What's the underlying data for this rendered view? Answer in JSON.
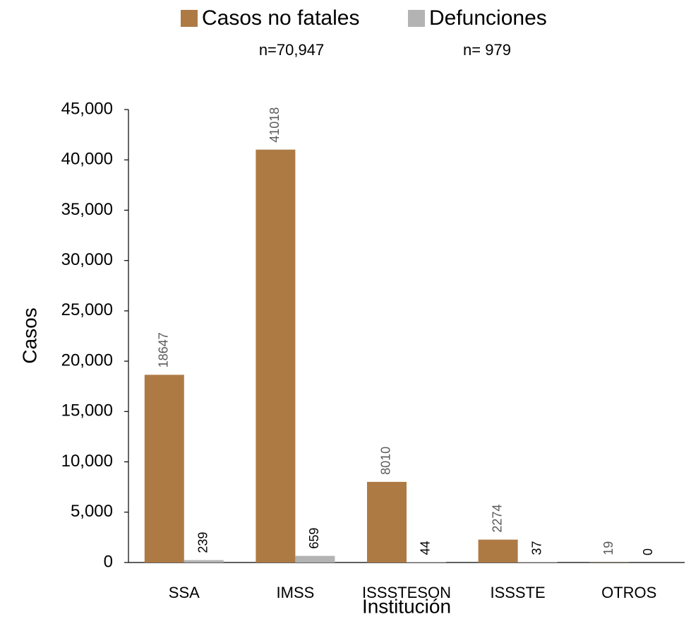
{
  "chart_data": {
    "type": "bar",
    "annotations": [
      "n=70,947",
      "n= 979"
    ],
    "y_label": "Casos",
    "x_label": "Institución",
    "categories": [
      "SSA",
      "IMSS",
      "ISSSTESON",
      "ISSSTE",
      "OTROS"
    ],
    "series": [
      {
        "name": "Casos no fatales",
        "color": "#ae7a44",
        "values": [
          18647,
          41018,
          8010,
          2274,
          19
        ]
      },
      {
        "name": "Defunciones",
        "color": "#b3b3b3",
        "values": [
          239,
          659,
          44,
          37,
          0
        ]
      }
    ],
    "ylim": [
      0,
      45000
    ],
    "yticks": [
      0,
      {
        "value": 5000,
        "label": "5,000"
      },
      {
        "value": 10000,
        "label": "10,000"
      },
      {
        "value": 15000,
        "label": "15,000"
      },
      {
        "value": 20000,
        "label": "20,000"
      },
      {
        "value": 25000,
        "label": "25,000"
      },
      {
        "value": 30000,
        "label": "30,000"
      },
      {
        "value": 35000,
        "label": "35,000"
      },
      {
        "value": 40000,
        "label": "40,000"
      },
      {
        "value": 45000,
        "label": "45,000"
      }
    ],
    "grid": false
  }
}
